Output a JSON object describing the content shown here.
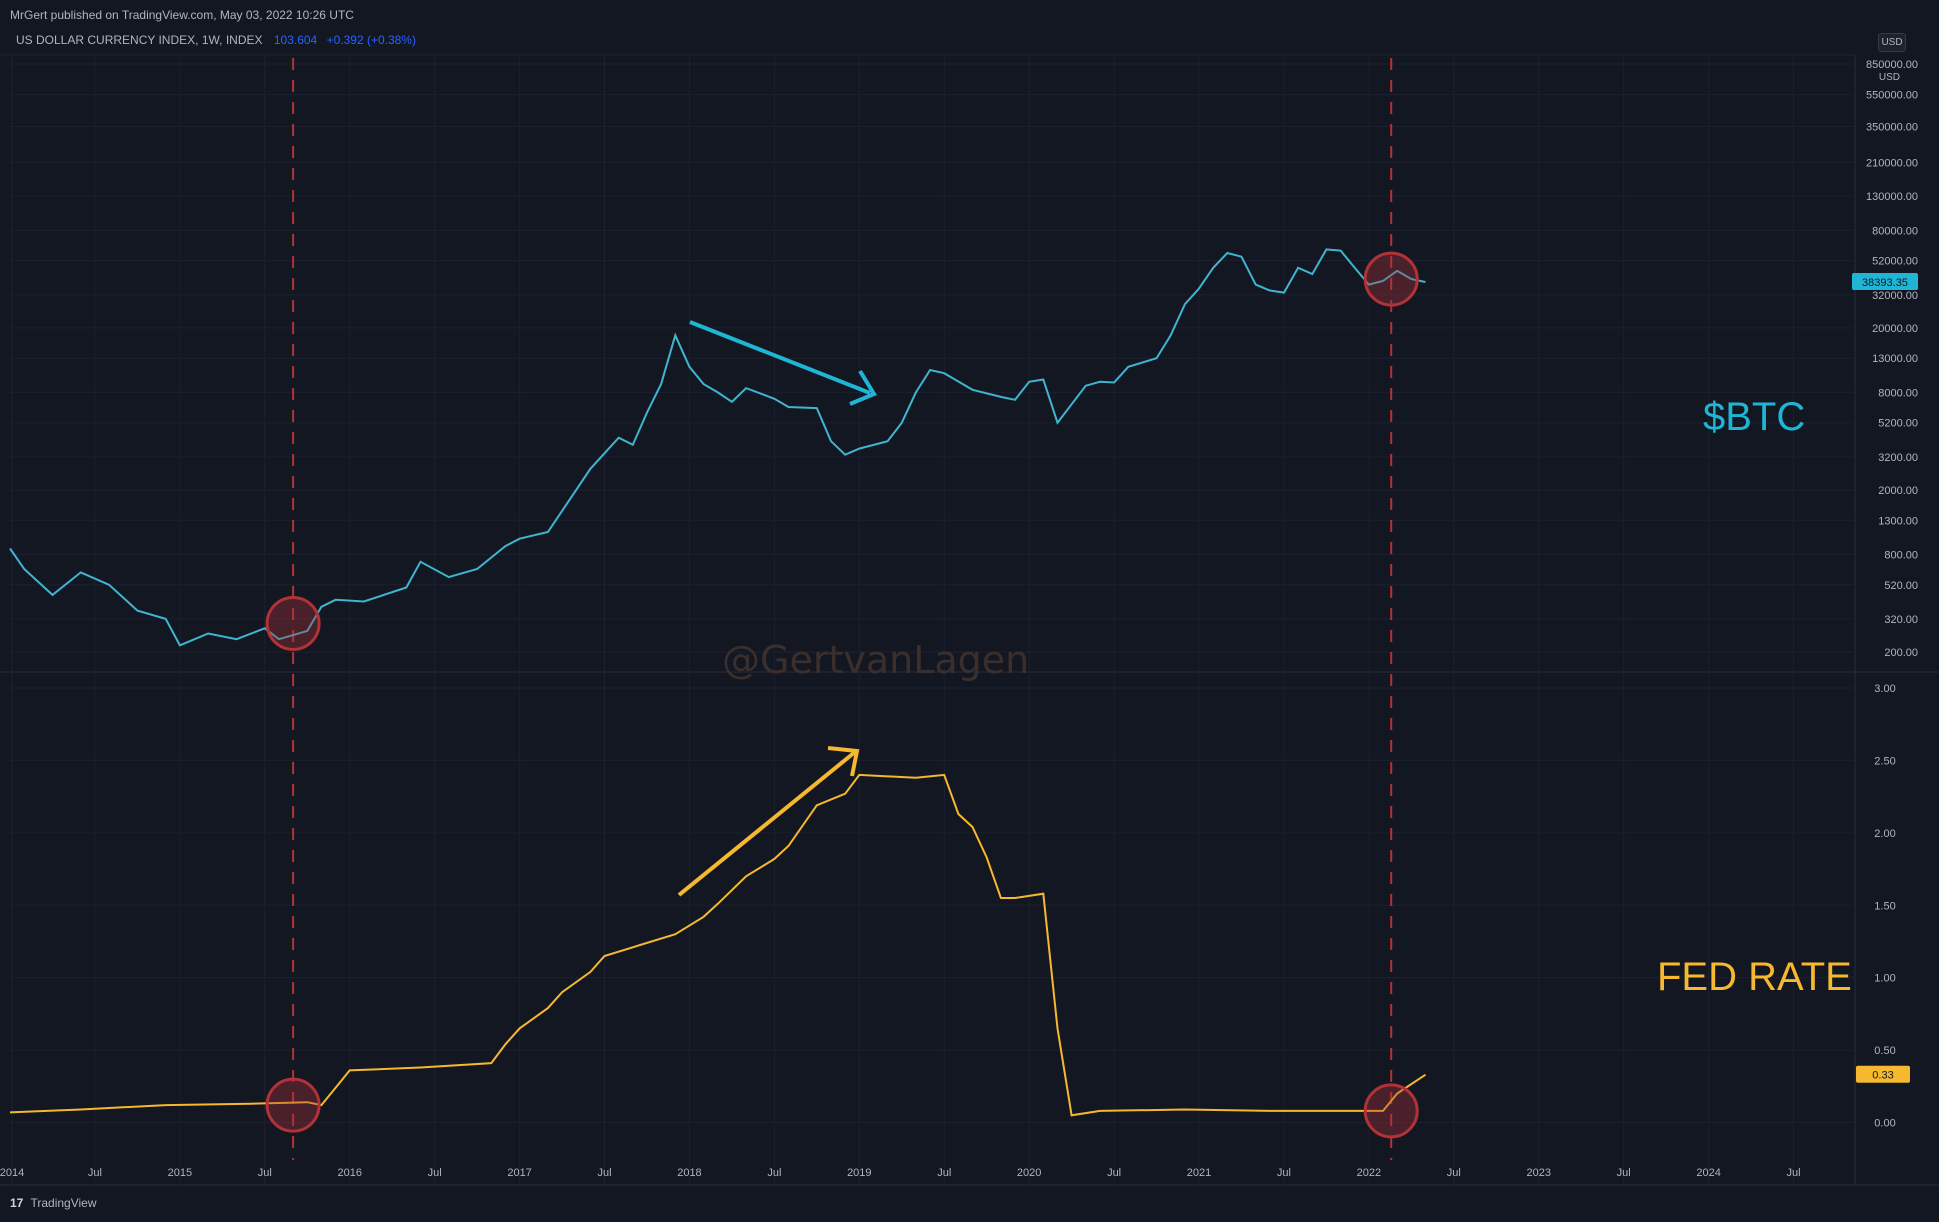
{
  "header": {
    "publisher": "MrGert published on TradingView.com, May 03, 2022 10:26 UTC",
    "symbol_info": "US DOLLAR CURRENCY INDEX, 1W, INDEX",
    "value": "103.604",
    "change": "+0.392 (+0.38%)",
    "currency_button": "USD"
  },
  "watermark": "@GertvanLagen",
  "annotations": {
    "btc_label": "$BTC",
    "fed_label": "FED RATE"
  },
  "footer": {
    "brand": "TradingView",
    "brand_mark": "17"
  },
  "colors": {
    "background": "#131722",
    "btc_line": "#3fb5cf",
    "fed_line": "#f5b82e",
    "marker": "#b23238",
    "arrow_btc": "#1fb6d6",
    "arrow_fed": "#f5b82e"
  },
  "chart_data": [
    {
      "type": "line",
      "series": [
        {
          "name": "$BTC"
        }
      ],
      "scale": "log",
      "ylim": [
        200,
        850000
      ],
      "y_axis_unit": "USD",
      "y_ticks": [
        "850000.00",
        "550000.00",
        "350000.00",
        "210000.00",
        "130000.00",
        "80000.00",
        "52000.00",
        "32000.00",
        "20000.00",
        "13000.00",
        "8000.00",
        "5200.00",
        "3200.00",
        "2000.00",
        "1300.00",
        "800.00",
        "520.00",
        "320.00",
        "200.00"
      ],
      "last_value_label": "38393.35",
      "points": [
        [
          "2014-01",
          870
        ],
        [
          "2014-02",
          650
        ],
        [
          "2014-04",
          450
        ],
        [
          "2014-06",
          620
        ],
        [
          "2014-08",
          520
        ],
        [
          "2014-10",
          360
        ],
        [
          "2014-12",
          320
        ],
        [
          "2015-01",
          220
        ],
        [
          "2015-03",
          260
        ],
        [
          "2015-05",
          240
        ],
        [
          "2015-07",
          280
        ],
        [
          "2015-08",
          240
        ],
        [
          "2015-10",
          270
        ],
        [
          "2015-11",
          380
        ],
        [
          "2015-12",
          420
        ],
        [
          "2016-02",
          410
        ],
        [
          "2016-05",
          500
        ],
        [
          "2016-06",
          720
        ],
        [
          "2016-08",
          580
        ],
        [
          "2016-10",
          650
        ],
        [
          "2016-12",
          900
        ],
        [
          "2017-01",
          1000
        ],
        [
          "2017-03",
          1100
        ],
        [
          "2017-05",
          2000
        ],
        [
          "2017-06",
          2700
        ],
        [
          "2017-08",
          4200
        ],
        [
          "2017-09",
          3800
        ],
        [
          "2017-10",
          6000
        ],
        [
          "2017-11",
          9000
        ],
        [
          "2017-12",
          18000
        ],
        [
          "2018-01",
          11500
        ],
        [
          "2018-02",
          9000
        ],
        [
          "2018-03",
          8000
        ],
        [
          "2018-04",
          7000
        ],
        [
          "2018-05",
          8500
        ],
        [
          "2018-07",
          7300
        ],
        [
          "2018-08",
          6500
        ],
        [
          "2018-10",
          6400
        ],
        [
          "2018-11",
          4000
        ],
        [
          "2018-12",
          3300
        ],
        [
          "2019-01",
          3600
        ],
        [
          "2019-03",
          4000
        ],
        [
          "2019-04",
          5200
        ],
        [
          "2019-05",
          8000
        ],
        [
          "2019-06",
          11000
        ],
        [
          "2019-07",
          10500
        ],
        [
          "2019-09",
          8300
        ],
        [
          "2019-11",
          7500
        ],
        [
          "2019-12",
          7200
        ],
        [
          "2020-01",
          9300
        ],
        [
          "2020-02",
          9600
        ],
        [
          "2020-03",
          5200
        ],
        [
          "2020-05",
          8800
        ],
        [
          "2020-06",
          9300
        ],
        [
          "2020-07",
          9200
        ],
        [
          "2020-08",
          11500
        ],
        [
          "2020-10",
          13000
        ],
        [
          "2020-11",
          18000
        ],
        [
          "2020-12",
          28000
        ],
        [
          "2021-01",
          35000
        ],
        [
          "2021-02",
          47000
        ],
        [
          "2021-03",
          58000
        ],
        [
          "2021-04",
          55000
        ],
        [
          "2021-05",
          37000
        ],
        [
          "2021-06",
          34000
        ],
        [
          "2021-07",
          33000
        ],
        [
          "2021-08",
          47000
        ],
        [
          "2021-09",
          43000
        ],
        [
          "2021-10",
          61000
        ],
        [
          "2021-11",
          60000
        ],
        [
          "2021-12",
          47000
        ],
        [
          "2022-01",
          37000
        ],
        [
          "2022-02",
          39000
        ],
        [
          "2022-03",
          45000
        ],
        [
          "2022-04",
          40000
        ],
        [
          "2022-05",
          38393
        ]
      ]
    },
    {
      "type": "line",
      "series": [
        {
          "name": "FED RATE"
        }
      ],
      "ylim": [
        -0.1,
        3.0
      ],
      "y_ticks": [
        "3.00",
        "2.50",
        "2.00",
        "1.50",
        "1.00",
        "0.50",
        "0.00"
      ],
      "last_value_label": "0.33",
      "x_ticks": [
        "2014",
        "Jul",
        "2015",
        "Jul",
        "2016",
        "Jul",
        "2017",
        "Jul",
        "2018",
        "Jul",
        "2019",
        "Jul",
        "2020",
        "Jul",
        "2021",
        "Jul",
        "2022",
        "Jul",
        "2023",
        "Jul",
        "2024",
        "Jul"
      ],
      "points": [
        [
          "2014-01",
          0.07
        ],
        [
          "2014-06",
          0.09
        ],
        [
          "2014-12",
          0.12
        ],
        [
          "2015-06",
          0.13
        ],
        [
          "2015-10",
          0.14
        ],
        [
          "2015-11",
          0.12
        ],
        [
          "2015-12",
          0.24
        ],
        [
          "2016-01",
          0.36
        ],
        [
          "2016-06",
          0.38
        ],
        [
          "2016-11",
          0.41
        ],
        [
          "2016-12",
          0.54
        ],
        [
          "2017-01",
          0.65
        ],
        [
          "2017-03",
          0.79
        ],
        [
          "2017-04",
          0.9
        ],
        [
          "2017-06",
          1.04
        ],
        [
          "2017-07",
          1.15
        ],
        [
          "2017-12",
          1.3
        ],
        [
          "2018-02",
          1.42
        ],
        [
          "2018-03",
          1.51
        ],
        [
          "2018-05",
          1.7
        ],
        [
          "2018-07",
          1.82
        ],
        [
          "2018-08",
          1.91
        ],
        [
          "2018-10",
          2.19
        ],
        [
          "2018-12",
          2.27
        ],
        [
          "2019-01",
          2.4
        ],
        [
          "2019-05",
          2.38
        ],
        [
          "2019-07",
          2.4
        ],
        [
          "2019-08",
          2.13
        ],
        [
          "2019-09",
          2.04
        ],
        [
          "2019-10",
          1.83
        ],
        [
          "2019-11",
          1.55
        ],
        [
          "2019-12",
          1.55
        ],
        [
          "2020-02",
          1.58
        ],
        [
          "2020-03",
          0.65
        ],
        [
          "2020-04",
          0.05
        ],
        [
          "2020-06",
          0.08
        ],
        [
          "2020-12",
          0.09
        ],
        [
          "2021-06",
          0.08
        ],
        [
          "2021-12",
          0.08
        ],
        [
          "2022-02",
          0.08
        ],
        [
          "2022-03",
          0.2
        ],
        [
          "2022-05",
          0.33
        ]
      ]
    }
  ]
}
